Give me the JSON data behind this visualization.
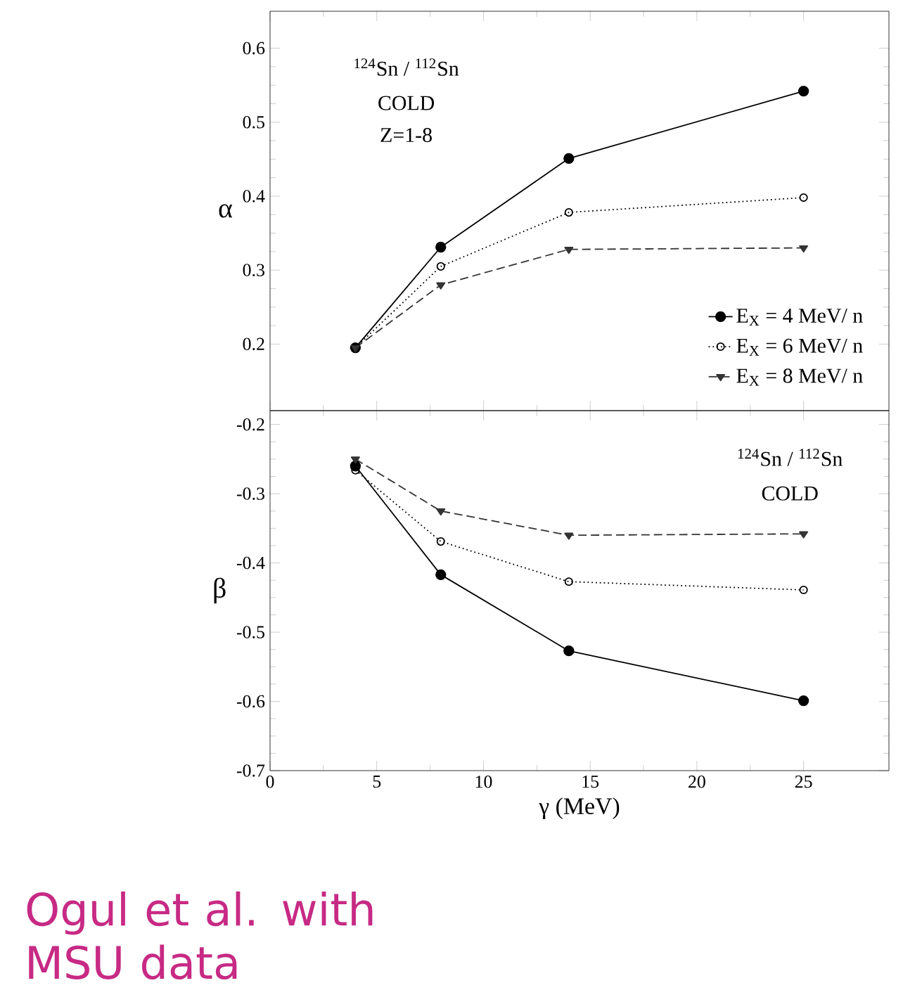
{
  "chart_data": [
    {
      "type": "line",
      "x": [
        4,
        8,
        14,
        25
      ],
      "ylabel": "α",
      "xlim": [
        0,
        29
      ],
      "xticks": [
        0,
        5,
        10,
        15,
        20,
        25
      ],
      "ylim": [
        0.11,
        0.65
      ],
      "yticks": [
        0.2,
        0.3,
        0.4,
        0.5,
        0.6
      ],
      "tick_labels": "y",
      "legend": "bottom right",
      "annotations": [
        "$^{124}$Sn / $^{112}$Sn",
        "COLD",
        "Z=1-8"
      ],
      "series": [
        {
          "name": "E$_{X}$ = 4 MeV/ n",
          "color": "#000000",
          "marker": "circle",
          "line_style": "solid",
          "values": [
            0.195,
            0.331,
            0.451,
            0.542
          ]
        },
        {
          "name": "E$_{X}$ = 6 MeV/ n",
          "color": "#000000",
          "marker": "open circle",
          "line_style": "dotted",
          "values": [
            0.195,
            0.305,
            0.378,
            0.398
          ]
        },
        {
          "name": "E$_{X}$ = 8 MeV/ n",
          "color": "#333333",
          "marker": "triangle",
          "line_style": "dashed",
          "values": [
            0.195,
            0.28,
            0.328,
            0.33
          ]
        }
      ]
    },
    {
      "type": "line",
      "x": [
        4,
        8,
        14,
        25
      ],
      "xlabel": "γ (MeV)",
      "ylabel": "β",
      "xlim": [
        0,
        29
      ],
      "xticks": [
        0,
        5,
        10,
        15,
        20,
        25
      ],
      "ylim": [
        -0.7,
        -0.18
      ],
      "yticks": [
        -0.7,
        -0.6,
        -0.5,
        -0.4,
        -0.3,
        -0.2
      ],
      "annotations": [
        "$^{124}$Sn / $^{112}$Sn",
        "COLD",
        "Ogul et al. with MSU data"
      ],
      "series": [
        {
          "color": "#000000",
          "marker": "circle",
          "line_style": "solid",
          "values": [
            -0.26,
            -0.417,
            -0.527,
            -0.599
          ]
        },
        {
          "color": "#000000",
          "marker": "open circle",
          "line_style": "dotted",
          "values": [
            -0.266,
            -0.369,
            -0.427,
            -0.439
          ]
        },
        {
          "color": "#333333",
          "marker": "triangle",
          "line_style": "dashed",
          "values": [
            -0.25,
            -0.325,
            -0.36,
            -0.358
          ]
        }
      ]
    }
  ]
}
